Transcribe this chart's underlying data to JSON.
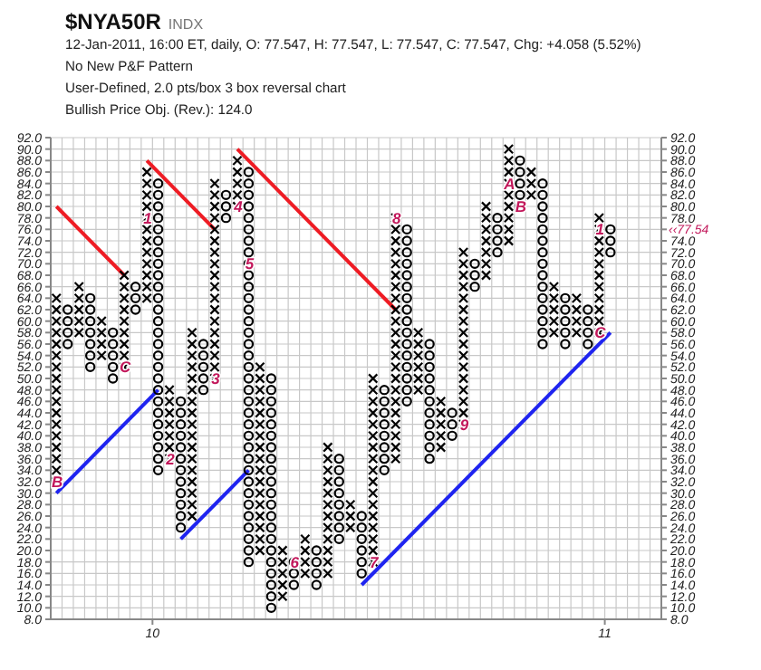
{
  "chart_data": {
    "type": "scatter",
    "title": "$NYA50R",
    "subtitle": "INDX",
    "annotations": [
      "12-Jan-2011, 16:00 ET, daily, O: 77.547, H: 77.547, L: 77.547, C: 77.547, Chg: +4.058 (5.52%)",
      "No New P&F Pattern",
      "User-Defined, 2.0 pts/box 3 box reversal chart",
      "Bullish Price Obj. (Rev.): 124.0",
      "‹‹77.54",
      {
        "text": "B",
        "x": 9.7875,
        "y": 32
      },
      {
        "text": "C",
        "x": 9.9375,
        "y": 52
      },
      {
        "text": "1",
        "x": 9.9875,
        "y": 78
      },
      {
        "text": "2",
        "x": 10.0375,
        "y": 36
      },
      {
        "text": "3",
        "x": 10.1375,
        "y": 50
      },
      {
        "text": "4",
        "x": 10.1875,
        "y": 80
      },
      {
        "text": "5",
        "x": 10.2125,
        "y": 70
      },
      {
        "text": "6",
        "x": 10.3125,
        "y": 18
      },
      {
        "text": "7",
        "x": 10.4875,
        "y": 18
      },
      {
        "text": "8",
        "x": 10.5375,
        "y": 78
      },
      {
        "text": "9",
        "x": 10.6875,
        "y": 42
      },
      {
        "text": "A",
        "x": 10.7875,
        "y": 84
      },
      {
        "text": "B",
        "x": 10.8125,
        "y": 80
      },
      {
        "text": "C",
        "x": 10.9875,
        "y": 58
      },
      {
        "text": "1",
        "x": 10.9875,
        "y": 76
      }
    ],
    "series": [
      {
        "marker": "cross",
        "color": "#000000",
        "x": [
          9.7875,
          9.7875,
          9.7875,
          9.7875,
          9.7875,
          9.7875,
          9.7875,
          9.7875,
          9.7875,
          9.7875,
          9.7875,
          9.7875,
          9.7875,
          9.7875,
          9.7875,
          9.7875,
          9.7875,
          9.8375,
          9.8375,
          9.8375,
          9.8375,
          9.8375,
          9.8875,
          9.8875,
          9.8875,
          9.8875,
          9.9375,
          9.9375,
          9.9375,
          9.9375,
          9.9375,
          9.9375,
          9.9375,
          9.9375,
          9.9375,
          9.9875,
          9.9875,
          9.9875,
          9.9875,
          9.9875,
          9.9875,
          9.9875,
          9.9875,
          9.9875,
          9.9875,
          9.9875,
          9.9875,
          10.0375,
          10.0375,
          10.0375,
          10.0375,
          10.0375,
          10.0375,
          10.0375,
          10.0875,
          10.0875,
          10.0875,
          10.0875,
          10.0875,
          10.0875,
          10.0875,
          10.0875,
          10.0875,
          10.0875,
          10.0875,
          10.0875,
          10.0875,
          10.0875,
          10.0875,
          10.0875,
          10.0875,
          10.1375,
          10.1375,
          10.1375,
          10.1375,
          10.1375,
          10.1375,
          10.1375,
          10.1375,
          10.1375,
          10.1375,
          10.1375,
          10.1375,
          10.1375,
          10.1375,
          10.1375,
          10.1375,
          10.1375,
          10.1375,
          10.1875,
          10.1875,
          10.1875,
          10.1875,
          10.1875,
          10.2375,
          10.2375,
          10.2375,
          10.2375,
          10.2375,
          10.2375,
          10.2375,
          10.2375,
          10.2375,
          10.2375,
          10.2375,
          10.2375,
          10.2375,
          10.2375,
          10.2375,
          10.2375,
          10.2375,
          10.2875,
          10.2875,
          10.2875,
          10.2875,
          10.2875,
          10.3375,
          10.3375,
          10.3375,
          10.3375,
          10.3875,
          10.3875,
          10.3875,
          10.3875,
          10.3875,
          10.3875,
          10.3875,
          10.3875,
          10.3875,
          10.3875,
          10.3875,
          10.3875,
          10.4375,
          10.4375,
          10.4375,
          10.4875,
          10.4875,
          10.4875,
          10.4875,
          10.4875,
          10.4875,
          10.4875,
          10.4875,
          10.4875,
          10.4875,
          10.4875,
          10.4875,
          10.4875,
          10.4875,
          10.4875,
          10.4875,
          10.4875,
          10.5375,
          10.5375,
          10.5375,
          10.5375,
          10.5375,
          10.5375,
          10.5375,
          10.5375,
          10.5375,
          10.5375,
          10.5375,
          10.5375,
          10.5375,
          10.5375,
          10.5375,
          10.5375,
          10.5375,
          10.5375,
          10.5375,
          10.5375,
          10.5375,
          10.5375,
          10.5875,
          10.5875,
          10.5875,
          10.5875,
          10.5875,
          10.5875,
          10.6375,
          10.6375,
          10.6375,
          10.6375,
          10.6375,
          10.6875,
          10.6875,
          10.6875,
          10.6875,
          10.6875,
          10.6875,
          10.6875,
          10.6875,
          10.6875,
          10.6875,
          10.6875,
          10.6875,
          10.6875,
          10.6875,
          10.6875,
          10.6875,
          10.7375,
          10.7375,
          10.7375,
          10.7375,
          10.7375,
          10.7375,
          10.7375,
          10.7875,
          10.7875,
          10.7875,
          10.7875,
          10.7875,
          10.7875,
          10.7875,
          10.7875,
          10.7875,
          10.8375,
          10.8375,
          10.8375,
          10.8875,
          10.8875,
          10.8875,
          10.8875,
          10.8875,
          10.9375,
          10.9375,
          10.9375,
          10.9375,
          10.9875,
          10.9875,
          10.9875,
          10.9875,
          10.9875,
          10.9875,
          10.9875,
          10.9875,
          10.9875,
          10.9875,
          10.9875
        ],
        "values": [
          32,
          34,
          36,
          38,
          40,
          42,
          44,
          46,
          48,
          50,
          52,
          54,
          56,
          58,
          60,
          62,
          64,
          58,
          60,
          62,
          64,
          66,
          54,
          56,
          58,
          60,
          52,
          54,
          56,
          58,
          60,
          62,
          64,
          66,
          68,
          64,
          66,
          68,
          70,
          72,
          74,
          76,
          78,
          80,
          82,
          84,
          86,
          36,
          38,
          40,
          42,
          44,
          46,
          48,
          26,
          28,
          30,
          32,
          34,
          36,
          38,
          40,
          42,
          44,
          46,
          48,
          50,
          52,
          54,
          56,
          58,
          50,
          52,
          54,
          56,
          58,
          60,
          62,
          64,
          66,
          68,
          70,
          72,
          74,
          76,
          78,
          80,
          82,
          84,
          80,
          82,
          84,
          86,
          88,
          20,
          22,
          24,
          26,
          28,
          30,
          32,
          34,
          36,
          38,
          40,
          42,
          44,
          46,
          48,
          50,
          52,
          12,
          14,
          16,
          18,
          20,
          16,
          18,
          20,
          22,
          16,
          18,
          20,
          22,
          24,
          26,
          28,
          30,
          32,
          34,
          36,
          38,
          24,
          26,
          28,
          18,
          20,
          22,
          24,
          26,
          28,
          30,
          32,
          34,
          36,
          38,
          40,
          42,
          44,
          46,
          48,
          50,
          36,
          38,
          40,
          42,
          44,
          46,
          48,
          50,
          52,
          54,
          56,
          58,
          60,
          62,
          64,
          66,
          68,
          70,
          72,
          74,
          76,
          78,
          48,
          50,
          52,
          54,
          56,
          58,
          38,
          40,
          42,
          44,
          46,
          42,
          44,
          46,
          48,
          50,
          52,
          54,
          56,
          58,
          60,
          62,
          64,
          66,
          68,
          70,
          72,
          68,
          70,
          72,
          74,
          76,
          78,
          80,
          74,
          76,
          78,
          80,
          82,
          84,
          86,
          88,
          90,
          82,
          84,
          86,
          58,
          60,
          62,
          64,
          66,
          58,
          60,
          62,
          64,
          58,
          60,
          62,
          64,
          66,
          68,
          70,
          72,
          74,
          76,
          78
        ]
      },
      {
        "marker": "circle",
        "color": "#000000",
        "x": [
          9.8125,
          9.8125,
          9.8125,
          9.8125,
          9.8625,
          9.8625,
          9.8625,
          9.8625,
          9.8625,
          9.8625,
          9.8625,
          9.9125,
          9.9125,
          9.9125,
          9.9125,
          9.9125,
          9.9625,
          9.9625,
          9.9625,
          10.0125,
          10.0125,
          10.0125,
          10.0125,
          10.0125,
          10.0125,
          10.0125,
          10.0125,
          10.0125,
          10.0125,
          10.0125,
          10.0125,
          10.0125,
          10.0125,
          10.0125,
          10.0125,
          10.0125,
          10.0125,
          10.0125,
          10.0125,
          10.0125,
          10.0125,
          10.0125,
          10.0125,
          10.0125,
          10.0125,
          10.0625,
          10.0625,
          10.0625,
          10.0625,
          10.0625,
          10.0625,
          10.0625,
          10.0625,
          10.0625,
          10.0625,
          10.0625,
          10.0625,
          10.1125,
          10.1125,
          10.1125,
          10.1125,
          10.1125,
          10.1625,
          10.1625,
          10.1625,
          10.2125,
          10.2125,
          10.2125,
          10.2125,
          10.2125,
          10.2125,
          10.2125,
          10.2125,
          10.2125,
          10.2125,
          10.2125,
          10.2125,
          10.2125,
          10.2125,
          10.2125,
          10.2125,
          10.2125,
          10.2125,
          10.2125,
          10.2125,
          10.2125,
          10.2125,
          10.2125,
          10.2125,
          10.2125,
          10.2125,
          10.2125,
          10.2125,
          10.2125,
          10.2125,
          10.2125,
          10.2125,
          10.2125,
          10.2125,
          10.2125,
          10.2625,
          10.2625,
          10.2625,
          10.2625,
          10.2625,
          10.2625,
          10.2625,
          10.2625,
          10.2625,
          10.2625,
          10.2625,
          10.2625,
          10.2625,
          10.2625,
          10.2625,
          10.2625,
          10.2625,
          10.2625,
          10.2625,
          10.2625,
          10.2625,
          10.3125,
          10.3125,
          10.3125,
          10.3625,
          10.3625,
          10.3625,
          10.3625,
          10.4125,
          10.4125,
          10.4125,
          10.4125,
          10.4125,
          10.4125,
          10.4125,
          10.4125,
          10.4625,
          10.4625,
          10.4625,
          10.4625,
          10.4625,
          10.4625,
          10.5125,
          10.5125,
          10.5125,
          10.5125,
          10.5125,
          10.5125,
          10.5125,
          10.5125,
          10.5625,
          10.5625,
          10.5625,
          10.5625,
          10.5625,
          10.5625,
          10.5625,
          10.5625,
          10.5625,
          10.5625,
          10.5625,
          10.5625,
          10.5625,
          10.5625,
          10.5625,
          10.5625,
          10.6125,
          10.6125,
          10.6125,
          10.6125,
          10.6125,
          10.6125,
          10.6125,
          10.6125,
          10.6125,
          10.6125,
          10.6125,
          10.6625,
          10.6625,
          10.6625,
          10.7125,
          10.7125,
          10.7125,
          10.7625,
          10.7625,
          10.7625,
          10.7625,
          10.8125,
          10.8125,
          10.8125,
          10.8125,
          10.8125,
          10.8625,
          10.8625,
          10.8625,
          10.8625,
          10.8625,
          10.8625,
          10.8625,
          10.8625,
          10.8625,
          10.8625,
          10.8625,
          10.8625,
          10.8625,
          10.8625,
          10.8625,
          10.9125,
          10.9125,
          10.9125,
          10.9125,
          10.9125,
          10.9625,
          10.9625,
          10.9625,
          10.9625,
          11.0125,
          11.0125,
          11.0125
        ],
        "values": [
          56,
          58,
          60,
          62,
          52,
          54,
          56,
          58,
          60,
          62,
          64,
          50,
          52,
          54,
          56,
          58,
          62,
          64,
          66,
          34,
          36,
          38,
          40,
          42,
          44,
          46,
          48,
          50,
          52,
          54,
          56,
          58,
          60,
          62,
          64,
          66,
          68,
          70,
          72,
          74,
          76,
          78,
          80,
          82,
          84,
          24,
          26,
          28,
          30,
          32,
          34,
          36,
          38,
          40,
          42,
          44,
          46,
          48,
          50,
          52,
          54,
          56,
          78,
          80,
          82,
          18,
          20,
          22,
          24,
          26,
          28,
          30,
          32,
          34,
          36,
          38,
          40,
          42,
          44,
          46,
          48,
          50,
          52,
          54,
          56,
          58,
          60,
          62,
          64,
          66,
          68,
          70,
          72,
          74,
          76,
          78,
          80,
          82,
          84,
          86,
          10,
          12,
          14,
          16,
          18,
          20,
          22,
          24,
          26,
          28,
          30,
          32,
          34,
          36,
          38,
          40,
          42,
          44,
          46,
          48,
          50,
          14,
          16,
          18,
          14,
          16,
          18,
          20,
          22,
          24,
          26,
          28,
          30,
          32,
          34,
          36,
          16,
          18,
          20,
          22,
          24,
          26,
          34,
          36,
          38,
          40,
          42,
          44,
          46,
          48,
          46,
          48,
          50,
          52,
          54,
          56,
          58,
          60,
          62,
          64,
          66,
          68,
          70,
          72,
          74,
          76,
          36,
          38,
          40,
          42,
          44,
          46,
          48,
          50,
          52,
          54,
          56,
          40,
          42,
          44,
          66,
          68,
          70,
          72,
          74,
          76,
          78,
          80,
          82,
          84,
          86,
          88,
          56,
          58,
          60,
          62,
          64,
          66,
          68,
          70,
          72,
          74,
          76,
          78,
          80,
          82,
          84,
          56,
          58,
          60,
          62,
          64,
          56,
          58,
          60,
          62,
          72,
          74,
          76
        ]
      },
      {
        "type": "line",
        "color": "#ee1c24",
        "x": [
          9.7875,
          9.9375
        ],
        "values": [
          80,
          68
        ]
      },
      {
        "type": "line",
        "color": "#ee1c24",
        "x": [
          9.9875,
          10.1375
        ],
        "values": [
          88,
          76
        ]
      },
      {
        "type": "line",
        "color": "#ee1c24",
        "x": [
          10.1875,
          10.5375
        ],
        "values": [
          90,
          62
        ]
      },
      {
        "type": "line",
        "color": "#1f24f0",
        "x": [
          9.7875,
          10.0125
        ],
        "values": [
          30,
          48
        ]
      },
      {
        "type": "line",
        "color": "#1f24f0",
        "x": [
          10.0625,
          10.2125
        ],
        "values": [
          22,
          34
        ]
      },
      {
        "type": "line",
        "color": "#1f24f0",
        "x": [
          10.4625,
          11.0125
        ],
        "values": [
          14,
          58
        ]
      }
    ],
    "xlim": [
      9.775,
      11.125
    ],
    "xticks": [
      10,
      11
    ],
    "ylim": [
      8,
      92
    ],
    "yticks": [
      {
        "value": 92,
        "label": "92.0"
      },
      {
        "value": 90,
        "label": "90.0"
      },
      {
        "value": 88,
        "label": "88.0"
      },
      {
        "value": 86,
        "label": "86.0"
      },
      {
        "value": 84,
        "label": "84.0"
      },
      {
        "value": 82,
        "label": "82.0"
      },
      {
        "value": 80,
        "label": "80.0"
      },
      {
        "value": 78,
        "label": "78.0"
      },
      {
        "value": 76,
        "label": "76.0"
      },
      {
        "value": 74,
        "label": "74.0"
      },
      {
        "value": 72,
        "label": "72.0"
      },
      {
        "value": 70,
        "label": "70.0"
      },
      {
        "value": 68,
        "label": "68.0"
      },
      {
        "value": 66,
        "label": "66.0"
      },
      {
        "value": 64,
        "label": "64.0"
      },
      {
        "value": 62,
        "label": "62.0"
      },
      {
        "value": 60,
        "label": "60.0"
      },
      {
        "value": 58,
        "label": "58.0"
      },
      {
        "value": 56,
        "label": "56.0"
      },
      {
        "value": 54,
        "label": "54.0"
      },
      {
        "value": 52,
        "label": "52.0"
      },
      {
        "value": 50,
        "label": "50.0"
      },
      {
        "value": 48,
        "label": "48.0"
      },
      {
        "value": 46,
        "label": "46.0"
      },
      {
        "value": 44,
        "label": "44.0"
      },
      {
        "value": 42,
        "label": "42.0"
      },
      {
        "value": 40,
        "label": "40.0"
      },
      {
        "value": 38,
        "label": "38.0"
      },
      {
        "value": 36,
        "label": "36.0"
      },
      {
        "value": 34,
        "label": "34.0"
      },
      {
        "value": 32,
        "label": "32.0"
      },
      {
        "value": 30,
        "label": "30.0"
      },
      {
        "value": 28,
        "label": "28.0"
      },
      {
        "value": 26,
        "label": "26.0"
      },
      {
        "value": 24,
        "label": "24.0"
      },
      {
        "value": 22,
        "label": "22.0"
      },
      {
        "value": 20,
        "label": "20.0"
      },
      {
        "value": 18,
        "label": "18.0"
      },
      {
        "value": 16,
        "label": "16.0"
      },
      {
        "value": 14,
        "label": "14.0"
      },
      {
        "value": 12,
        "label": "12.0"
      },
      {
        "value": 10,
        "label": "10.0"
      },
      {
        "value": 8,
        "label": "8.0"
      }
    ],
    "y2lim": [
      8,
      92
    ],
    "y2ticks": [
      {
        "value": 92,
        "label": "92.0"
      },
      {
        "value": 90,
        "label": "90.0"
      },
      {
        "value": 88,
        "label": "88.0"
      },
      {
        "value": 86,
        "label": "86.0"
      },
      {
        "value": 84,
        "label": "84.0"
      },
      {
        "value": 82,
        "label": "82.0"
      },
      {
        "value": 80,
        "label": "80.0"
      },
      {
        "value": 78,
        "label": "78.0"
      },
      {
        "value": 76,
        "label": null
      },
      {
        "value": 74,
        "label": "74.0"
      },
      {
        "value": 72,
        "label": "72.0"
      },
      {
        "value": 70,
        "label": "70.0"
      },
      {
        "value": 68,
        "label": "68.0"
      },
      {
        "value": 66,
        "label": "66.0"
      },
      {
        "value": 64,
        "label": "64.0"
      },
      {
        "value": 62,
        "label": "62.0"
      },
      {
        "value": 60,
        "label": "60.0"
      },
      {
        "value": 58,
        "label": "58.0"
      },
      {
        "value": 56,
        "label": "56.0"
      },
      {
        "value": 54,
        "label": "54.0"
      },
      {
        "value": 52,
        "label": "52.0"
      },
      {
        "value": 50,
        "label": "50.0"
      },
      {
        "value": 48,
        "label": "48.0"
      },
      {
        "value": 46,
        "label": "46.0"
      },
      {
        "value": 44,
        "label": "44.0"
      },
      {
        "value": 42,
        "label": "42.0"
      },
      {
        "value": 40,
        "label": "40.0"
      },
      {
        "value": 38,
        "label": "38.0"
      },
      {
        "value": 36,
        "label": "36.0"
      },
      {
        "value": 34,
        "label": "34.0"
      },
      {
        "value": 32,
        "label": "32.0"
      },
      {
        "value": 30,
        "label": "30.0"
      },
      {
        "value": 28,
        "label": "28.0"
      },
      {
        "value": 26,
        "label": "26.0"
      },
      {
        "value": 24,
        "label": "24.0"
      },
      {
        "value": 22,
        "label": "22.0"
      },
      {
        "value": 20,
        "label": "20.0"
      },
      {
        "value": 18,
        "label": "18.0"
      },
      {
        "value": 16,
        "label": "16.0"
      },
      {
        "value": 14,
        "label": "14.0"
      },
      {
        "value": 12,
        "label": "12.0"
      },
      {
        "value": 10,
        "label": "10.0"
      },
      {
        "value": 8,
        "label": "8.0"
      }
    ],
    "grid": true
  }
}
